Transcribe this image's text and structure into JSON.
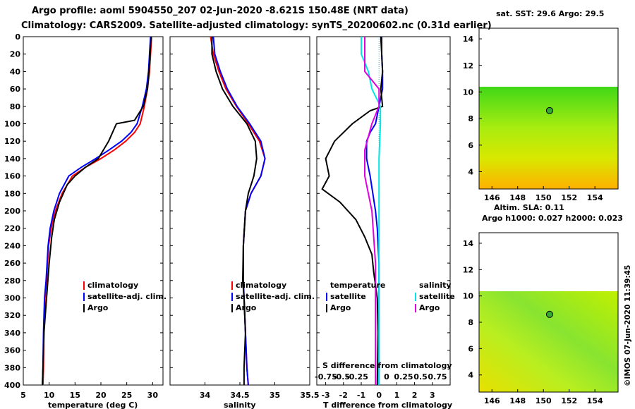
{
  "header": {
    "line1": "Argo profile: aoml 5904550_207 02-Jun-2020 -8.621S 150.48E (NRT data)",
    "line2": "Climatology: CARS2009. Satellite-adjusted climatology: synTS_20200602.nc (0.31d earlier)"
  },
  "colors": {
    "climatology": "#ff0000",
    "satellite": "#0000ff",
    "argo": "#000000",
    "sat_salinity": "#00e5e5",
    "argo_salinity": "#e000e0"
  },
  "depth_axis": {
    "ticks": [
      "0",
      "20",
      "40",
      "60",
      "80",
      "100",
      "120",
      "140",
      "160",
      "180",
      "200",
      "220",
      "240",
      "260",
      "280",
      "300",
      "320",
      "340",
      "360",
      "380",
      "400"
    ]
  },
  "legend_temp": {
    "climatology": "climatology",
    "satellite": "satellite-adj. clim.",
    "argo": "Argo"
  },
  "legend_diff": {
    "temperature_header": "temperature",
    "salinity_header": "salinity",
    "satellite": "satellite",
    "argo": "Argo",
    "sal_satellite": "satellite",
    "sal_argo": "Argo"
  },
  "chart_data": [
    {
      "type": "line",
      "name": "temperature-profile",
      "xlabel": "temperature (deg C)",
      "ylabel": "depth",
      "xlim": [
        5,
        32
      ],
      "ylim": [
        400,
        0
      ],
      "xticks": [
        "5",
        "10",
        "15",
        "20",
        "25",
        "30"
      ],
      "series": [
        {
          "name": "climatology",
          "color": "#ff0000",
          "x": [
            29.8,
            29.6,
            29.4,
            29.0,
            28.4,
            27.6,
            26.5,
            24.8,
            22.6,
            20.0,
            17.0,
            14.5,
            12.5,
            11.2,
            10.4,
            9.9,
            9.5,
            9.2,
            9.0,
            8.9,
            8.8
          ],
          "y": [
            0,
            20,
            40,
            60,
            80,
            100,
            110,
            120,
            130,
            140,
            150,
            160,
            180,
            200,
            220,
            240,
            280,
            300,
            340,
            380,
            400
          ]
        },
        {
          "name": "satellite-adj. clim.",
          "color": "#0000ff",
          "x": [
            29.6,
            29.4,
            29.2,
            28.8,
            28.0,
            27.0,
            25.8,
            24.0,
            21.6,
            19.0,
            16.2,
            13.8,
            12.0,
            10.9,
            10.2,
            9.8,
            9.4,
            9.1,
            8.9,
            8.8,
            8.7
          ],
          "y": [
            0,
            20,
            40,
            60,
            80,
            100,
            110,
            120,
            130,
            140,
            150,
            160,
            180,
            200,
            220,
            240,
            280,
            300,
            340,
            380,
            400
          ]
        },
        {
          "name": "Argo",
          "color": "#000000",
          "x": [
            29.7,
            29.5,
            29.3,
            29.0,
            28.2,
            26.5,
            23.0,
            21.5,
            19.5,
            17.0,
            15.0,
            13.5,
            12.0,
            11.0,
            10.5,
            10.0,
            9.5,
            9.0,
            8.8,
            8.7
          ],
          "y": [
            0,
            20,
            40,
            60,
            80,
            96,
            100,
            120,
            140,
            150,
            160,
            170,
            190,
            210,
            230,
            260,
            300,
            340,
            380,
            400
          ]
        }
      ]
    },
    {
      "type": "line",
      "name": "salinity-profile",
      "xlabel": "salinity",
      "ylabel": "depth",
      "xlim": [
        33.5,
        35.5
      ],
      "ylim": [
        400,
        0
      ],
      "xticks": [
        "34",
        "34.5",
        "35",
        "35.5"
      ],
      "legend": {
        "climatology": "climatology",
        "satellite": "satellite-adj. clim.",
        "argo": "Argo"
      },
      "series": [
        {
          "name": "climatology",
          "color": "#ff0000",
          "x": [
            34.08,
            34.12,
            34.2,
            34.3,
            34.45,
            34.62,
            34.78,
            34.86,
            34.8,
            34.66,
            34.58,
            34.55,
            34.55,
            34.56,
            34.58,
            34.6,
            34.62
          ],
          "y": [
            0,
            20,
            40,
            60,
            80,
            100,
            120,
            140,
            160,
            180,
            200,
            240,
            280,
            300,
            340,
            380,
            400
          ]
        },
        {
          "name": "satellite-adj. clim.",
          "color": "#0000ff",
          "x": [
            34.12,
            34.14,
            34.22,
            34.32,
            34.46,
            34.64,
            34.8,
            34.86,
            34.8,
            34.66,
            34.58,
            34.55,
            34.55,
            34.56,
            34.58,
            34.6,
            34.62
          ],
          "y": [
            0,
            20,
            40,
            60,
            80,
            100,
            120,
            140,
            160,
            180,
            200,
            240,
            280,
            300,
            340,
            380,
            400
          ]
        },
        {
          "name": "Argo",
          "color": "#000000",
          "x": [
            34.1,
            34.1,
            34.16,
            34.25,
            34.4,
            34.6,
            34.72,
            34.74,
            34.7,
            34.62,
            34.58,
            34.55,
            34.54,
            34.56,
            34.58,
            34.56,
            34.56
          ],
          "y": [
            0,
            20,
            40,
            60,
            80,
            100,
            120,
            140,
            160,
            180,
            200,
            240,
            280,
            300,
            340,
            380,
            400
          ]
        }
      ]
    },
    {
      "type": "line",
      "name": "difference-profile",
      "xlabel": "T difference from climatology",
      "x2label": "S difference from climatology",
      "xlim": [
        -3.5,
        4
      ],
      "ylim": [
        400,
        0
      ],
      "xticks": [
        "-3",
        "-2",
        "-1",
        "0",
        "1",
        "2",
        "3"
      ],
      "x2ticks": [
        "-0.75",
        "-0.5",
        "-0.25",
        "0",
        "0.25",
        "0.5",
        "0.75"
      ],
      "series": [
        {
          "name": "temperature satellite",
          "color": "#0000ff",
          "x": [
            0.15,
            0.15,
            0.2,
            0.2,
            0.0,
            -0.2,
            -0.5,
            -0.7,
            -0.7,
            -0.5,
            -0.35,
            -0.2,
            -0.1,
            -0.05,
            0.0,
            0.0,
            0.0,
            0.0
          ],
          "y": [
            0,
            20,
            40,
            60,
            80,
            100,
            110,
            120,
            140,
            160,
            180,
            200,
            220,
            240,
            260,
            300,
            340,
            400
          ]
        },
        {
          "name": "temperature Argo",
          "color": "#000000",
          "x": [
            0.1,
            0.15,
            0.2,
            0.1,
            0.2,
            -0.5,
            -1.5,
            -2.5,
            -3.0,
            -2.8,
            -3.2,
            -2.2,
            -1.3,
            -0.8,
            -0.4,
            -0.3,
            -0.1,
            -0.05,
            -0.1
          ],
          "y": [
            0,
            20,
            40,
            60,
            80,
            85,
            100,
            120,
            140,
            160,
            175,
            190,
            210,
            230,
            250,
            270,
            300,
            340,
            400
          ]
        },
        {
          "name": "salinity satellite",
          "color": "#00e5e5",
          "x": [
            -0.25,
            -0.25,
            -0.15,
            -0.1,
            0.02,
            0.02,
            0.0,
            0.0,
            0.0,
            0.0
          ],
          "y": [
            0,
            20,
            40,
            60,
            80,
            100,
            140,
            200,
            300,
            400
          ]
        },
        {
          "name": "salinity Argo",
          "color": "#e000e0",
          "x": [
            -0.2,
            -0.2,
            -0.2,
            0.0,
            0.0,
            -0.1,
            -0.2,
            -0.2,
            -0.1,
            -0.05,
            -0.05
          ],
          "y": [
            0,
            20,
            40,
            60,
            80,
            100,
            130,
            160,
            200,
            260,
            400
          ]
        }
      ]
    },
    {
      "type": "heatmap",
      "name": "sst-map",
      "title": "sat. SST: 29.6 Argo: 29.5",
      "xlim": [
        145,
        155.8
      ],
      "ylim": [
        2.7,
        14.8
      ],
      "xticks": [
        "146",
        "148",
        "150",
        "152",
        "154"
      ],
      "yticks": [
        "4",
        "6",
        "8",
        "10",
        "12",
        "14"
      ],
      "data_ymax": 10.1,
      "argo_position": {
        "lon": 150.48,
        "lat": 8.6
      }
    },
    {
      "type": "heatmap",
      "name": "sla-map",
      "title": "Altim. SLA: 0.11",
      "subtitle": "Argo h1000: 0.027 h2000: 0.023",
      "xlim": [
        145,
        155.8
      ],
      "ylim": [
        2.7,
        14.8
      ],
      "xticks": [
        "146",
        "148",
        "150",
        "152",
        "154"
      ],
      "yticks": [
        "4",
        "6",
        "8",
        "10",
        "12",
        "14"
      ],
      "data_ymax": 10.1,
      "argo_position": {
        "lon": 150.48,
        "lat": 8.6
      }
    }
  ],
  "footer": {
    "credit": "©IMOS 07-Jun-2020 11:39:45"
  }
}
